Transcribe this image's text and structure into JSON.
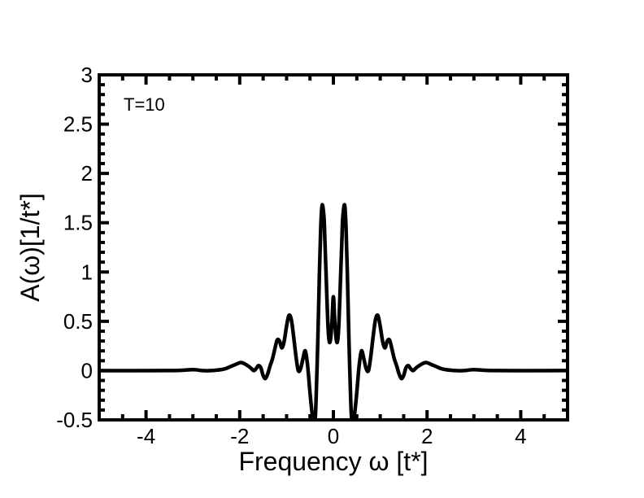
{
  "chart_data": {
    "type": "line",
    "title": "",
    "annotation": "T=10",
    "xlabel": "Frequency ω [t*]",
    "ylabel": "A(ω)[1/t*]",
    "xlim": [
      -5,
      5
    ],
    "ylim": [
      -0.5,
      3
    ],
    "x_ticks": [
      -4,
      -2,
      0,
      2,
      4
    ],
    "x_tick_labels": [
      "-4",
      "-2",
      "0",
      "2",
      "4"
    ],
    "y_ticks": [
      -0.5,
      0,
      0.5,
      1,
      1.5,
      2,
      2.5,
      3
    ],
    "y_tick_labels": [
      "-0.5",
      "0",
      "0.5",
      "1",
      "1.5",
      "2",
      "2.5",
      "3"
    ],
    "grid": false,
    "legend": false,
    "line_color": "#000000",
    "series": [
      {
        "x": [
          -5,
          -3.5,
          -3.0,
          -2.8,
          -2.6,
          -2.4,
          -2.3,
          -2.2,
          -2.1,
          -2.0,
          -1.95,
          -1.9,
          -1.8,
          -1.75,
          -1.7,
          -1.65,
          -1.6,
          -1.55,
          -1.5,
          -1.45,
          -1.4,
          -1.35,
          -1.3,
          -1.25,
          -1.2,
          -1.15,
          -1.1,
          -1.05,
          -1.0,
          -0.95,
          -0.9,
          -0.85,
          -0.8,
          -0.75,
          -0.7,
          -0.65,
          -0.6,
          -0.55,
          -0.5,
          -0.45,
          -0.4,
          -0.37,
          -0.33,
          -0.3,
          -0.27,
          -0.24,
          -0.2,
          -0.18,
          -0.15,
          -0.12,
          -0.09,
          -0.06,
          -0.03,
          0.0,
          0.03,
          0.06,
          0.09,
          0.12,
          0.15,
          0.18,
          0.2,
          0.24,
          0.27,
          0.3,
          0.33,
          0.37,
          0.4,
          0.45,
          0.5,
          0.55,
          0.6,
          0.65,
          0.7,
          0.75,
          0.8,
          0.85,
          0.9,
          0.95,
          1.0,
          1.05,
          1.1,
          1.15,
          1.2,
          1.25,
          1.3,
          1.35,
          1.4,
          1.45,
          1.5,
          1.55,
          1.6,
          1.65,
          1.7,
          1.75,
          1.8,
          1.9,
          1.95,
          2.0,
          2.1,
          2.2,
          2.3,
          2.4,
          2.6,
          2.8,
          3.0,
          3.5,
          5
        ],
        "y": [
          0,
          0,
          0.01,
          0.0,
          0.0,
          0.01,
          0.02,
          0.04,
          0.06,
          0.08,
          0.08,
          0.07,
          0.04,
          0.02,
          0.0,
          0.02,
          0.05,
          0.03,
          -0.05,
          -0.08,
          -0.03,
          0.05,
          0.12,
          0.22,
          0.31,
          0.3,
          0.23,
          0.3,
          0.45,
          0.56,
          0.52,
          0.35,
          0.15,
          0.0,
          0.02,
          0.12,
          0.2,
          0.05,
          -0.22,
          -0.45,
          -0.55,
          -0.3,
          0.35,
          0.95,
          1.45,
          1.68,
          1.55,
          1.3,
          0.9,
          0.5,
          0.3,
          0.32,
          0.5,
          0.75,
          0.5,
          0.32,
          0.3,
          0.5,
          0.9,
          1.3,
          1.55,
          1.68,
          1.45,
          0.95,
          0.35,
          -0.3,
          -0.55,
          -0.45,
          -0.22,
          0.05,
          0.2,
          0.12,
          0.02,
          0.0,
          0.15,
          0.35,
          0.52,
          0.56,
          0.45,
          0.3,
          0.23,
          0.3,
          0.31,
          0.22,
          0.12,
          0.05,
          -0.03,
          -0.08,
          -0.05,
          0.03,
          0.05,
          0.02,
          0.0,
          0.02,
          0.04,
          0.07,
          0.08,
          0.08,
          0.06,
          0.04,
          0.02,
          0.01,
          0.0,
          0.0,
          0.01,
          0,
          0
        ]
      }
    ]
  }
}
